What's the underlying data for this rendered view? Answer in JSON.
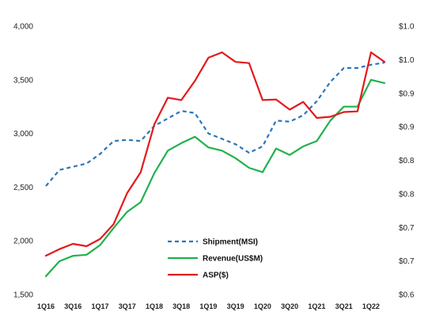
{
  "chart_data": {
    "type": "line",
    "x": [
      "1Q16",
      "2Q16",
      "3Q16",
      "4Q16",
      "1Q17",
      "2Q17",
      "3Q17",
      "4Q17",
      "1Q18",
      "2Q18",
      "3Q18",
      "4Q18",
      "1Q19",
      "2Q19",
      "3Q19",
      "4Q19",
      "1Q20",
      "2Q20",
      "3Q20",
      "4Q20",
      "1Q21",
      "2Q21",
      "3Q21",
      "4Q21",
      "1Q22",
      "2Q22"
    ],
    "x_tick_labels": [
      "1Q16",
      "3Q16",
      "1Q17",
      "3Q17",
      "1Q18",
      "3Q18",
      "1Q19",
      "3Q19",
      "1Q20",
      "3Q20",
      "1Q21",
      "3Q21",
      "1Q22"
    ],
    "y_left": {
      "ylim": [
        1500,
        4000
      ],
      "ticks": [
        "1,500",
        "2,000",
        "2,500",
        "3,000",
        "3,500",
        "4,000"
      ]
    },
    "y_right": {
      "ylim": [
        0.6,
        1.05
      ],
      "ticks": [
        "$0.6",
        "$0.7",
        "$0.7",
        "$0.8",
        "$0.8",
        "$0.9",
        "$0.9",
        "$1.0",
        "$1.0"
      ]
    },
    "series": [
      {
        "name": "Shipment(MSI)",
        "axis": "left",
        "color": "#2e75b6",
        "style": "dashed",
        "values": [
          2510,
          2660,
          2690,
          2720,
          2810,
          2930,
          2940,
          2930,
          3070,
          3140,
          3210,
          3190,
          3000,
          2950,
          2900,
          2820,
          2880,
          3120,
          3110,
          3170,
          3300,
          3480,
          3610,
          3610,
          3640,
          3660
        ]
      },
      {
        "name": "Revenue(US$M)",
        "axis": "left",
        "color": "#22b14c",
        "style": "solid",
        "values": [
          1670,
          1810,
          1860,
          1870,
          1960,
          2120,
          2270,
          2360,
          2630,
          2840,
          2910,
          2970,
          2870,
          2840,
          2770,
          2680,
          2640,
          2860,
          2800,
          2880,
          2930,
          3120,
          3250,
          3250,
          3500,
          3470
        ]
      },
      {
        "name": "ASP($)",
        "axis": "right",
        "color": "#e31a1c",
        "style": "solid",
        "values": [
          0.665,
          0.676,
          0.685,
          0.681,
          0.693,
          0.718,
          0.77,
          0.805,
          0.885,
          0.93,
          0.926,
          0.958,
          0.997,
          1.006,
          0.99,
          0.988,
          0.926,
          0.927,
          0.91,
          0.923,
          0.896,
          0.898,
          0.906,
          0.907,
          1.006,
          0.99
        ]
      }
    ],
    "legend": {
      "placement": "bottom-center"
    }
  }
}
